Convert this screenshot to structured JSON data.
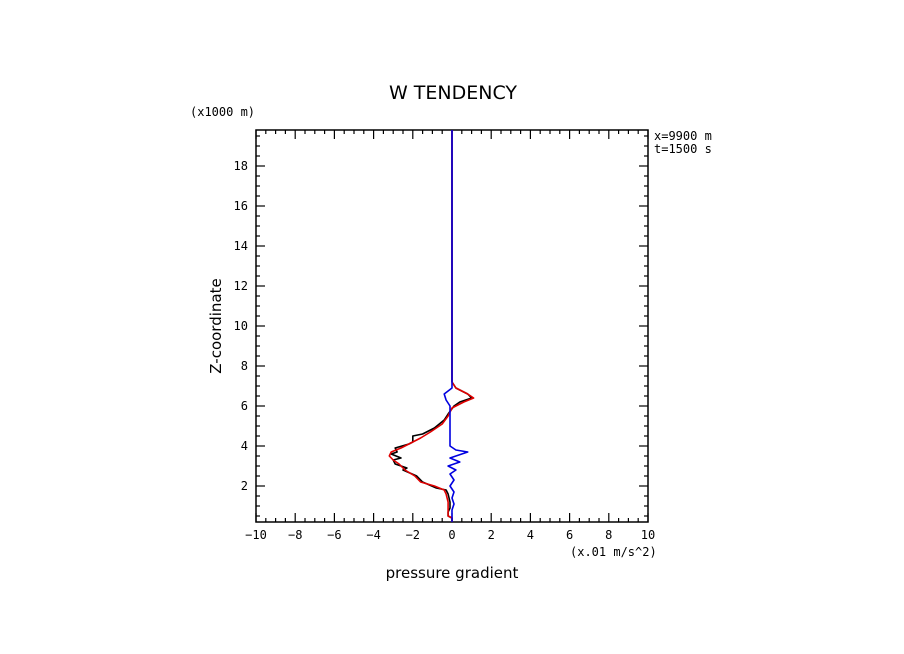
{
  "chart_data": {
    "type": "line",
    "title": "W TENDENCY",
    "xlabel": "pressure gradient",
    "ylabel": "Z-coordinate",
    "x_units": "(x.01 m/s^2)",
    "y_units": "(x1000 m)",
    "annotations": [
      "x=9900 m",
      "t=1500 s"
    ],
    "xlim": [
      -10,
      10
    ],
    "ylim": [
      0.2,
      19.8
    ],
    "x_ticks": [
      "-10",
      "-8",
      "-6",
      "-4",
      "-2",
      "0",
      "2",
      "4",
      "6",
      "8",
      "10"
    ],
    "y_ticks": [
      "2",
      "4",
      "6",
      "8",
      "10",
      "12",
      "14",
      "16",
      "18"
    ],
    "series": [
      {
        "color": "#000000",
        "points": [
          [
            0.0,
            0.2
          ],
          [
            0.0,
            0.4
          ],
          [
            -0.2,
            0.5
          ],
          [
            -0.2,
            0.7
          ],
          [
            -0.1,
            0.9
          ],
          [
            -0.1,
            1.2
          ],
          [
            -0.2,
            1.6
          ],
          [
            -0.3,
            1.8
          ],
          [
            -0.8,
            1.9
          ],
          [
            -1.5,
            2.2
          ],
          [
            -1.8,
            2.5
          ],
          [
            -2.5,
            2.8
          ],
          [
            -2.3,
            2.9
          ],
          [
            -2.9,
            3.1
          ],
          [
            -3.0,
            3.3
          ],
          [
            -2.6,
            3.4
          ],
          [
            -3.1,
            3.6
          ],
          [
            -2.8,
            3.7
          ],
          [
            -2.9,
            3.9
          ],
          [
            -2.2,
            4.1
          ],
          [
            -2.0,
            4.2
          ],
          [
            -2.0,
            4.5
          ],
          [
            -1.5,
            4.6
          ],
          [
            -0.9,
            4.9
          ],
          [
            -0.4,
            5.3
          ],
          [
            -0.2,
            5.6
          ],
          [
            0.1,
            6.0
          ],
          [
            0.4,
            6.2
          ],
          [
            1.0,
            6.4
          ],
          [
            0.8,
            6.6
          ],
          [
            0.2,
            6.9
          ],
          [
            0.0,
            7.2
          ],
          [
            0.0,
            10.0
          ],
          [
            0.0,
            14.0
          ],
          [
            0.0,
            19.8
          ]
        ]
      },
      {
        "color": "#e00000",
        "points": [
          [
            0.0,
            0.2
          ],
          [
            0.0,
            0.4
          ],
          [
            -0.2,
            0.5
          ],
          [
            -0.2,
            0.8
          ],
          [
            -0.2,
            1.2
          ],
          [
            -0.3,
            1.6
          ],
          [
            -0.4,
            1.8
          ],
          [
            -0.9,
            2.0
          ],
          [
            -1.6,
            2.2
          ],
          [
            -1.9,
            2.5
          ],
          [
            -2.4,
            2.8
          ],
          [
            -2.7,
            3.1
          ],
          [
            -3.0,
            3.3
          ],
          [
            -3.2,
            3.5
          ],
          [
            -3.1,
            3.7
          ],
          [
            -2.6,
            3.9
          ],
          [
            -2.2,
            4.1
          ],
          [
            -1.6,
            4.4
          ],
          [
            -1.1,
            4.7
          ],
          [
            -0.5,
            5.1
          ],
          [
            -0.2,
            5.5
          ],
          [
            0.0,
            5.9
          ],
          [
            0.6,
            6.2
          ],
          [
            1.1,
            6.4
          ],
          [
            0.8,
            6.6
          ],
          [
            0.2,
            6.9
          ],
          [
            0.0,
            7.2
          ],
          [
            0.0,
            10.0
          ],
          [
            0.0,
            14.0
          ],
          [
            0.0,
            19.8
          ]
        ]
      },
      {
        "color": "#0000e0",
        "points": [
          [
            0.0,
            0.2
          ],
          [
            0.0,
            0.5
          ],
          [
            0.0,
            0.8
          ],
          [
            0.1,
            1.1
          ],
          [
            0.0,
            1.4
          ],
          [
            0.1,
            1.7
          ],
          [
            -0.1,
            2.0
          ],
          [
            0.1,
            2.3
          ],
          [
            -0.1,
            2.6
          ],
          [
            0.2,
            2.8
          ],
          [
            -0.2,
            3.0
          ],
          [
            0.4,
            3.2
          ],
          [
            -0.1,
            3.4
          ],
          [
            0.8,
            3.7
          ],
          [
            0.2,
            3.8
          ],
          [
            -0.1,
            4.0
          ],
          [
            -0.1,
            4.5
          ],
          [
            -0.1,
            5.0
          ],
          [
            -0.1,
            5.5
          ],
          [
            -0.1,
            6.0
          ],
          [
            -0.3,
            6.3
          ],
          [
            -0.4,
            6.6
          ],
          [
            0.0,
            6.9
          ],
          [
            0.0,
            7.2
          ],
          [
            0.0,
            10.0
          ],
          [
            0.0,
            14.0
          ],
          [
            0.0,
            19.8
          ]
        ]
      }
    ]
  }
}
